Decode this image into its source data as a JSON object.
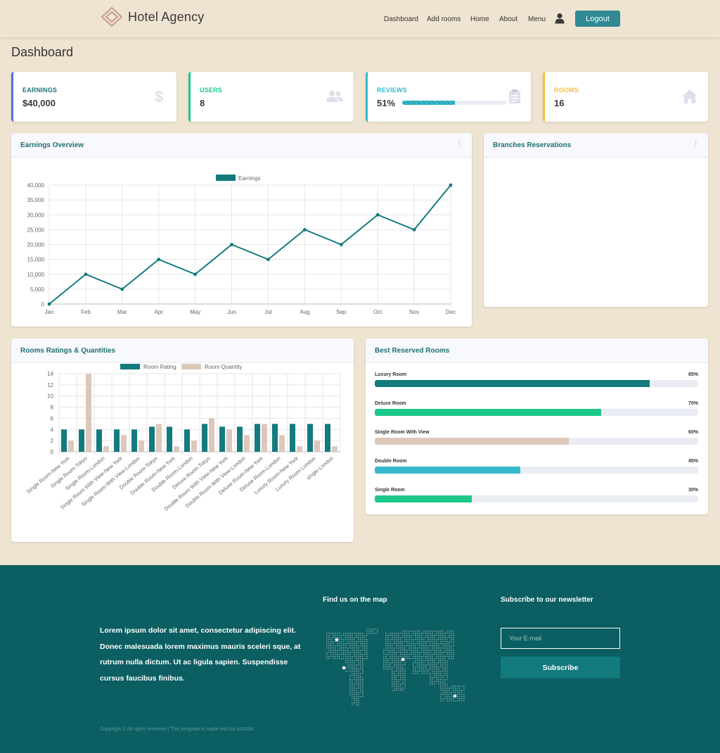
{
  "header": {
    "brand": "Hotel Agency",
    "nav": [
      "Dashboard",
      "Add rooms",
      "Home",
      "About",
      "Menu"
    ],
    "logout_label": "Logout",
    "icons": {
      "logo": "diamond-logo-icon",
      "user": "user-icon"
    }
  },
  "page_title": "Dashboard",
  "stats": [
    {
      "label": "EARNINGS",
      "value": "$40,000",
      "color": "#4e73df",
      "icon": "dollar-icon"
    },
    {
      "label": "USERS",
      "value": "8",
      "color": "#1cc88a",
      "icon": "users-icon"
    },
    {
      "label": "REVIEWS",
      "value": "51%",
      "color": "#36b9cc",
      "icon": "clipboard-icon",
      "progress": 0.51
    },
    {
      "label": "ROOMS",
      "value": "16",
      "color": "#f6c23e",
      "icon": "home-icon"
    }
  ],
  "earnings_panel": {
    "title": "Earnings Overview"
  },
  "branches_panel": {
    "title": "Branches Reservations"
  },
  "ratings_panel": {
    "title": "Rooms Ratings & Quantities"
  },
  "best_panel": {
    "title": "Best Reserved Rooms",
    "items": [
      {
        "name": "Luxury Room",
        "percent_label": "85%",
        "value": 0.85,
        "color": "#137a7d"
      },
      {
        "name": "Deluxe Room",
        "percent_label": "70%",
        "value": 0.7,
        "color": "#1cc88a"
      },
      {
        "name": "Single Room With View",
        "percent_label": "60%",
        "value": 0.6,
        "color": "#dcc8bb"
      },
      {
        "name": "Double Room",
        "percent_label": "45%",
        "value": 0.45,
        "color": "#36b9cc"
      },
      {
        "name": "Single Room",
        "percent_label": "30%",
        "value": 0.3,
        "color": "#1cc88a"
      }
    ]
  },
  "chart_data": [
    {
      "type": "line",
      "categories": [
        "Jan",
        "Feb",
        "Mar",
        "Apr",
        "May",
        "Jun",
        "Jul",
        "Aug",
        "Sep",
        "Oct",
        "Nov",
        "Dec"
      ],
      "series": [
        {
          "name": "Earnings",
          "values": [
            0,
            10000,
            5000,
            15000,
            10000,
            20000,
            15000,
            25000,
            20000,
            30000,
            25000,
            40000
          ],
          "color": "#137a7d"
        }
      ],
      "ylim": [
        0,
        40000
      ],
      "yticks": [
        "0",
        "5,000",
        "10,000",
        "15,000",
        "20,000",
        "25,000",
        "30,000",
        "35,000",
        "40,000"
      ],
      "grid": true,
      "legend": "top-center"
    },
    {
      "type": "bar",
      "categories": [
        "Single Room-New York",
        "Single Room-Tokyo",
        "Single Room-London",
        "Single Room With View-New York",
        "Single Room With View-London",
        "Double Room-Tokyo",
        "Double Room-New York",
        "Double Room-London",
        "Deluxe Room-Tokyo",
        "Double Room With View-New York",
        "Double Room With View-London",
        "Deluxe Room-New York",
        "Deluxe Room-London",
        "Luxury Room-New York",
        "Luxury Room-London",
        "single-London"
      ],
      "series": [
        {
          "name": "Room Rating",
          "values": [
            4,
            4,
            4,
            4,
            4,
            4.5,
            4.5,
            4,
            5,
            4.5,
            4.5,
            5,
            5,
            5,
            5,
            5
          ],
          "color": "#137a7d"
        },
        {
          "name": "Room Quantity",
          "values": [
            2,
            14,
            1,
            3,
            2,
            5,
            1,
            2,
            6,
            4,
            3,
            5,
            3,
            1,
            2,
            1
          ],
          "color": "#dcc8bb"
        }
      ],
      "ylim": [
        0,
        14
      ],
      "yticks": [
        "0",
        "2",
        "4",
        "6",
        "8",
        "10",
        "12",
        "14"
      ],
      "grid": true,
      "legend": "top-center"
    }
  ],
  "footer": {
    "about": "Lorem ipsum dolor sit amet, consectetur adipiscing elit. Donec malesuada lorem maximus mauris sceleri sque, at rutrum nulla dictum. Ut ac ligula sapien. Suspendisse cursus faucibus finibus.",
    "map_title": "Find us on the map",
    "newsletter_title": "Subscribe to our newsletter",
    "email_placeholder": "Your E-mail",
    "subscribe_label": "Subscribe",
    "copyright": "Copyright © All rights reserved | This template is made with  by AASSM",
    "map_icon": "world-map-icon"
  }
}
